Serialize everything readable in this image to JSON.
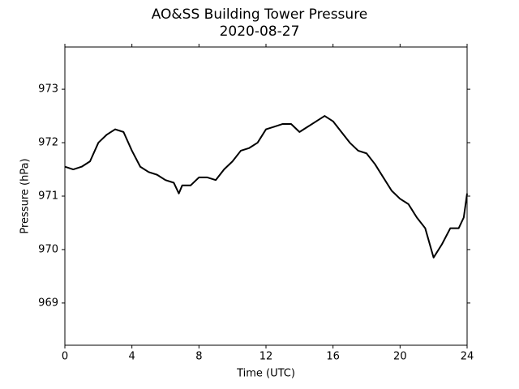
{
  "chart_data": {
    "type": "line",
    "title": "AO&SS Building Tower Pressure",
    "subtitle": "2020-08-27",
    "xlabel": "Time (UTC)",
    "ylabel": "Pressure (hPa)",
    "x": [
      0,
      0.5,
      1,
      1.5,
      2,
      2.5,
      3,
      3.5,
      4,
      4.5,
      5,
      5.5,
      6,
      6.5,
      6.8,
      7,
      7.5,
      8,
      8.5,
      9,
      9.5,
      10,
      10.5,
      11,
      11.5,
      12,
      12.5,
      13,
      13.5,
      14,
      14.5,
      15,
      15.5,
      16,
      16.5,
      17,
      17.5,
      18,
      18.5,
      19,
      19.5,
      20,
      20.5,
      21,
      21.5,
      22,
      22.5,
      23,
      23.5,
      23.8,
      24
    ],
    "series": [
      {
        "name": "Pressure",
        "color": "#000000",
        "values": [
          971.55,
          971.5,
          971.55,
          971.65,
          972.0,
          972.15,
          972.25,
          972.2,
          971.85,
          971.55,
          971.45,
          971.4,
          971.3,
          971.25,
          971.05,
          971.2,
          971.2,
          971.35,
          971.35,
          971.3,
          971.5,
          971.65,
          971.85,
          971.9,
          972.0,
          972.25,
          972.3,
          972.35,
          972.35,
          972.2,
          972.3,
          972.4,
          972.5,
          972.4,
          972.2,
          972.0,
          971.85,
          971.8,
          971.6,
          971.35,
          971.1,
          970.95,
          970.85,
          970.6,
          970.4,
          969.85,
          970.1,
          970.4,
          970.4,
          970.6,
          971.05
        ]
      }
    ],
    "xlim": [
      0,
      24
    ],
    "xticks": [
      0,
      4,
      8,
      12,
      16,
      20,
      24
    ],
    "ylim": [
      968.21,
      973.79
    ],
    "yticks": [
      969,
      970,
      971,
      972,
      973
    ]
  }
}
